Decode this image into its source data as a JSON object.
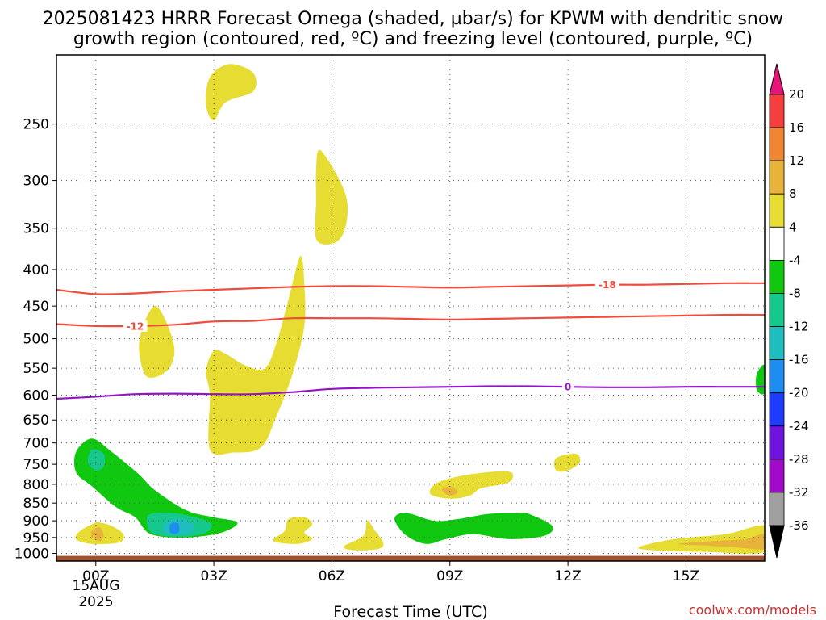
{
  "chart_data": {
    "type": "heatmap",
    "title_line1": "2025081423 HRRR Forecast Omega (shaded, µbar/s) for KPWM with dendritic snow",
    "title_line2": "growth region (contoured, red, ºC) and freezing level (contoured, purple, ºC)",
    "xlabel": "Forecast Time (UTC)",
    "x_ticks": [
      "00Z",
      "03Z",
      "06Z",
      "09Z",
      "12Z",
      "15Z"
    ],
    "x_tick_hours": [
      0,
      3,
      6,
      9,
      12,
      15
    ],
    "x_subtext": [
      "15AUG",
      "2025"
    ],
    "xlim_hours": [
      -1,
      17
    ],
    "y_ticks": [
      250,
      300,
      350,
      400,
      450,
      500,
      550,
      600,
      650,
      700,
      750,
      800,
      850,
      900,
      950,
      1000
    ],
    "ylim_hPa": [
      200,
      1025
    ],
    "y_scale": "log-pressure (inverted)",
    "grid": "dotted",
    "colorbar": {
      "labels": [
        "20",
        "16",
        "12",
        "8",
        "4",
        "-4",
        "-8",
        "-12",
        "-16",
        "-20",
        "-24",
        "-28",
        "-32",
        "-36"
      ],
      "colors": [
        "#f53e3e",
        "#ef8631",
        "#e8b33a",
        "#e6dc32",
        "#ffffff",
        "#0fc80f",
        "#17c88c",
        "#1fbebe",
        "#1f8cf0",
        "#1e3cff",
        "#6e14dc",
        "#a00ac8",
        "#a0a0a0"
      ],
      "top_arrow_color": "#e8147a",
      "bottom_arrow_color": "#000000"
    },
    "contours": [
      {
        "label": "-18",
        "color": "#f04b3c",
        "label_hour": 13.0,
        "points": [
          [
            -1,
            427
          ],
          [
            0,
            433
          ],
          [
            1,
            432
          ],
          [
            2,
            429
          ],
          [
            3,
            427
          ],
          [
            4,
            425
          ],
          [
            5,
            423
          ],
          [
            6,
            422
          ],
          [
            7,
            422
          ],
          [
            8,
            423
          ],
          [
            9,
            424
          ],
          [
            10,
            423
          ],
          [
            11,
            422
          ],
          [
            12,
            421
          ],
          [
            13,
            420
          ],
          [
            14,
            420
          ],
          [
            15,
            419
          ],
          [
            16,
            418
          ],
          [
            17,
            418
          ]
        ]
      },
      {
        "label": "-12",
        "color": "#f04b3c",
        "label_hour": 1.0,
        "points": [
          [
            -1,
            477
          ],
          [
            0,
            480
          ],
          [
            1,
            480
          ],
          [
            2,
            478
          ],
          [
            3,
            473
          ],
          [
            4,
            472
          ],
          [
            5,
            468
          ],
          [
            6,
            468
          ],
          [
            7,
            468
          ],
          [
            8,
            469
          ],
          [
            9,
            470
          ],
          [
            10,
            469
          ],
          [
            11,
            468
          ],
          [
            12,
            467
          ],
          [
            13,
            466
          ],
          [
            14,
            465
          ],
          [
            15,
            464
          ],
          [
            16,
            463
          ],
          [
            17,
            463
          ]
        ]
      },
      {
        "label": "0",
        "color": "#9314c8",
        "label_hour": 12.0,
        "points": [
          [
            -1,
            607
          ],
          [
            0,
            603
          ],
          [
            1,
            598
          ],
          [
            2,
            597
          ],
          [
            3,
            598
          ],
          [
            4,
            598
          ],
          [
            5,
            594
          ],
          [
            6,
            588
          ],
          [
            7,
            586
          ],
          [
            8,
            585
          ],
          [
            9,
            584
          ],
          [
            10,
            583
          ],
          [
            11,
            583
          ],
          [
            12,
            584
          ],
          [
            13,
            585
          ],
          [
            14,
            585
          ],
          [
            15,
            584
          ],
          [
            16,
            584
          ],
          [
            17,
            584
          ]
        ]
      }
    ],
    "omega_regions": [
      {
        "value_range": [
          4,
          8
        ],
        "color": "#e6dc32",
        "points": [
          [
            2.9,
            215
          ],
          [
            3.4,
            206
          ],
          [
            4.0,
            212
          ],
          [
            4.0,
            225
          ],
          [
            3.3,
            233
          ],
          [
            3.0,
            247
          ],
          [
            2.8,
            235
          ]
        ]
      },
      {
        "value_range": [
          4,
          8
        ],
        "color": "#e6dc32",
        "points": [
          [
            5.7,
            272
          ],
          [
            6.2,
            300
          ],
          [
            6.4,
            325
          ],
          [
            6.3,
            355
          ],
          [
            6.0,
            368
          ],
          [
            5.6,
            362
          ],
          [
            5.6,
            320
          ],
          [
            5.6,
            290
          ]
        ]
      },
      {
        "value_range": [
          4,
          8
        ],
        "color": "#e6dc32",
        "points": [
          [
            1.5,
            450
          ],
          [
            1.8,
            475
          ],
          [
            2.0,
            520
          ],
          [
            1.8,
            555
          ],
          [
            1.3,
            565
          ],
          [
            1.1,
            520
          ],
          [
            1.2,
            480
          ]
        ]
      },
      {
        "value_range": [
          4,
          8
        ],
        "color": "#e6dc32",
        "points": [
          [
            5.2,
            383
          ],
          [
            5.3,
            420
          ],
          [
            5.3,
            480
          ],
          [
            5.0,
            560
          ],
          [
            4.6,
            640
          ],
          [
            4.2,
            710
          ],
          [
            3.5,
            722
          ],
          [
            2.9,
            715
          ],
          [
            2.9,
            600
          ],
          [
            2.8,
            555
          ],
          [
            3.0,
            520
          ],
          [
            3.3,
            525
          ],
          [
            3.8,
            545
          ],
          [
            4.3,
            550
          ],
          [
            4.6,
            505
          ],
          [
            4.9,
            440
          ]
        ]
      },
      {
        "value_range": [
          4,
          8
        ],
        "color": "#e6dc32",
        "points": [
          [
            0.0,
            905
          ],
          [
            -0.4,
            930
          ],
          [
            -0.5,
            955
          ],
          [
            -0.1,
            970
          ],
          [
            0.6,
            965
          ],
          [
            0.7,
            940
          ],
          [
            0.4,
            915
          ],
          [
            0.1,
            905
          ]
        ]
      },
      {
        "value_range": [
          4,
          8
        ],
        "color": "#e6dc32",
        "points": [
          [
            4.9,
            895
          ],
          [
            5.3,
            890
          ],
          [
            5.5,
            910
          ],
          [
            5.3,
            935
          ],
          [
            5.5,
            955
          ],
          [
            5.1,
            970
          ],
          [
            4.5,
            960
          ],
          [
            4.8,
            930
          ]
        ]
      },
      {
        "value_range": [
          4,
          8
        ],
        "color": "#e6dc32",
        "points": [
          [
            6.9,
            900
          ],
          [
            7.1,
            930
          ],
          [
            7.3,
            965
          ],
          [
            7.2,
            985
          ],
          [
            6.6,
            990
          ],
          [
            6.3,
            978
          ],
          [
            6.8,
            945
          ]
        ]
      },
      {
        "value_range": [
          4,
          8
        ],
        "color": "#e6dc32",
        "points": [
          [
            8.7,
            795
          ],
          [
            9.5,
            775
          ],
          [
            10.5,
            768
          ],
          [
            10.5,
            795
          ],
          [
            9.8,
            810
          ],
          [
            9.5,
            830
          ],
          [
            9.0,
            838
          ],
          [
            8.5,
            825
          ]
        ]
      },
      {
        "value_range": [
          4,
          8
        ],
        "color": "#e6dc32",
        "points": [
          [
            11.7,
            735
          ],
          [
            12.2,
            725
          ],
          [
            12.3,
            745
          ],
          [
            12.0,
            765
          ],
          [
            11.7,
            765
          ]
        ]
      },
      {
        "value_range": [
          4,
          8
        ],
        "color": "#e6dc32",
        "points": [
          [
            13.8,
            980
          ],
          [
            14.7,
            955
          ],
          [
            16.0,
            940
          ],
          [
            17.0,
            915
          ],
          [
            17.0,
            995
          ],
          [
            15.5,
            995
          ],
          [
            14.2,
            990
          ]
        ]
      },
      {
        "value_range": [
          8,
          12
        ],
        "color": "#e8b33a",
        "points": [
          [
            -0.1,
            930
          ],
          [
            0.1,
            920
          ],
          [
            0.2,
            945
          ],
          [
            0.1,
            962
          ],
          [
            -0.1,
            950
          ]
        ]
      },
      {
        "value_range": [
          8,
          12
        ],
        "color": "#e8b33a",
        "points": [
          [
            8.8,
            815
          ],
          [
            9.0,
            805
          ],
          [
            9.2,
            820
          ],
          [
            9.0,
            830
          ]
        ]
      },
      {
        "value_range": [
          8,
          12
        ],
        "color": "#e8b33a",
        "points": [
          [
            14.8,
            970
          ],
          [
            15.8,
            960
          ],
          [
            16.5,
            955
          ],
          [
            17.0,
            940
          ],
          [
            17.0,
            985
          ],
          [
            16.2,
            980
          ],
          [
            15.5,
            975
          ]
        ]
      },
      {
        "value_range": [
          -8,
          -4
        ],
        "color": "#0fc80f",
        "points": [
          [
            -0.5,
            720
          ],
          [
            -0.1,
            690
          ],
          [
            0.4,
            720
          ],
          [
            1.1,
            775
          ],
          [
            1.5,
            815
          ],
          [
            2.3,
            870
          ],
          [
            3.0,
            890
          ],
          [
            3.6,
            905
          ],
          [
            3.2,
            935
          ],
          [
            2.3,
            950
          ],
          [
            1.4,
            940
          ],
          [
            1.0,
            890
          ],
          [
            0.5,
            860
          ],
          [
            -0.1,
            805
          ],
          [
            -0.5,
            770
          ]
        ]
      },
      {
        "value_range": [
          -8,
          -4
        ],
        "color": "#0fc80f",
        "points": [
          [
            7.7,
            880
          ],
          [
            8.0,
            880
          ],
          [
            8.6,
            900
          ],
          [
            9.2,
            895
          ],
          [
            10.0,
            880
          ],
          [
            10.7,
            878
          ],
          [
            11.0,
            880
          ],
          [
            11.6,
            915
          ],
          [
            11.4,
            945
          ],
          [
            10.5,
            955
          ],
          [
            9.6,
            940
          ],
          [
            8.9,
            955
          ],
          [
            8.4,
            970
          ],
          [
            7.9,
            945
          ],
          [
            7.6,
            900
          ]
        ]
      },
      {
        "value_range": [
          -8,
          -4
        ],
        "color": "#0fc80f",
        "points": [
          [
            17.0,
            545
          ],
          [
            16.8,
            560
          ],
          [
            16.8,
            590
          ],
          [
            17.0,
            595
          ]
        ]
      },
      {
        "value_range": [
          -12,
          -8
        ],
        "color": "#17c88c",
        "points": [
          [
            -0.1,
            715
          ],
          [
            0.2,
            725
          ],
          [
            0.2,
            755
          ],
          [
            0.0,
            765
          ],
          [
            -0.2,
            745
          ]
        ]
      },
      {
        "value_range": [
          -12,
          -8
        ],
        "color": "#17c88c",
        "points": [
          [
            1.4,
            880
          ],
          [
            2.1,
            880
          ],
          [
            2.9,
            905
          ],
          [
            2.8,
            935
          ],
          [
            2.2,
            948
          ],
          [
            1.5,
            940
          ],
          [
            1.3,
            910
          ]
        ]
      },
      {
        "value_range": [
          -16,
          -12
        ],
        "color": "#1fbebe",
        "points": [
          [
            1.8,
            900
          ],
          [
            2.2,
            895
          ],
          [
            2.5,
            915
          ],
          [
            2.4,
            935
          ],
          [
            2.0,
            942
          ],
          [
            1.7,
            930
          ]
        ]
      },
      {
        "value_range": [
          -20,
          -16
        ],
        "color": "#1f8cf0",
        "points": [
          [
            1.9,
            910
          ],
          [
            2.1,
            908
          ],
          [
            2.1,
            935
          ],
          [
            1.9,
            935
          ]
        ]
      }
    ],
    "terrain": {
      "color": "#a0522d",
      "top_hPa": 1008
    }
  },
  "credit": "coolwx.com/models"
}
